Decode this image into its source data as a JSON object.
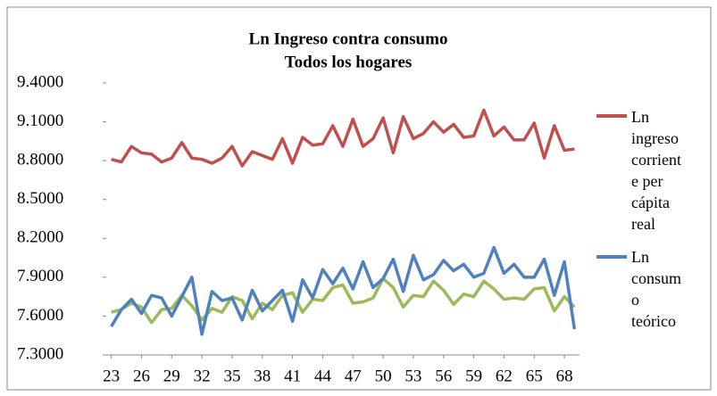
{
  "chart_data": {
    "type": "line",
    "title": "Ln Ingreso contra consumo",
    "subtitle": "Todos los hogares",
    "x": [
      23,
      24,
      25,
      26,
      27,
      28,
      29,
      30,
      31,
      32,
      33,
      34,
      35,
      36,
      37,
      38,
      39,
      40,
      41,
      42,
      43,
      44,
      45,
      46,
      47,
      48,
      49,
      50,
      51,
      52,
      53,
      54,
      55,
      56,
      57,
      58,
      59,
      60,
      61,
      62,
      63,
      64,
      65,
      66,
      67,
      68,
      69
    ],
    "xlim": [
      22.5,
      69.5
    ],
    "xticks": [
      23,
      26,
      29,
      32,
      35,
      38,
      41,
      44,
      47,
      50,
      53,
      56,
      59,
      62,
      65,
      68
    ],
    "ylim": [
      7.3,
      9.4
    ],
    "yticks": [
      {
        "value": 7.3,
        "label": "7.3000"
      },
      {
        "value": 7.6,
        "label": "7.6000"
      },
      {
        "value": 7.9,
        "label": "7.9000"
      },
      {
        "value": 8.2,
        "label": "8.2000"
      },
      {
        "value": 8.5,
        "label": "8.5000"
      },
      {
        "value": 8.8,
        "label": "8.8000"
      },
      {
        "value": 9.1,
        "label": "9.1000"
      },
      {
        "value": 9.4,
        "label": "9.4000"
      }
    ],
    "series": [
      {
        "name": "Ln ingreso corriente per cápita real",
        "color": "#c0504d",
        "values": [
          8.81,
          8.79,
          8.91,
          8.86,
          8.85,
          8.79,
          8.82,
          8.94,
          8.82,
          8.81,
          8.78,
          8.82,
          8.91,
          8.76,
          8.87,
          8.84,
          8.81,
          8.97,
          8.78,
          8.98,
          8.92,
          8.93,
          9.07,
          8.91,
          9.12,
          8.91,
          8.97,
          9.13,
          8.86,
          9.14,
          8.97,
          9.01,
          9.1,
          9.02,
          9.08,
          8.98,
          8.99,
          9.19,
          8.99,
          9.06,
          8.96,
          8.96,
          9.09,
          8.82,
          9.07,
          8.88,
          8.89
        ]
      },
      {
        "name": "Ln consumo teórico",
        "color": "#4f81bd",
        "values": [
          7.52,
          7.65,
          7.73,
          7.62,
          7.76,
          7.74,
          7.6,
          7.75,
          7.9,
          7.46,
          7.79,
          7.72,
          7.74,
          7.57,
          7.8,
          7.64,
          7.72,
          7.8,
          7.56,
          7.88,
          7.74,
          7.96,
          7.85,
          7.97,
          7.81,
          8.02,
          7.82,
          7.89,
          8.04,
          7.79,
          8.07,
          7.88,
          7.92,
          8.03,
          7.95,
          8.0,
          7.9,
          7.93,
          8.13,
          7.93,
          8.0,
          7.9,
          7.9,
          8.04,
          7.76,
          8.02,
          7.5
        ]
      },
      {
        "color": "#9bbb59",
        "values": [
          7.63,
          7.65,
          7.7,
          7.67,
          7.55,
          7.65,
          7.66,
          7.76,
          7.68,
          7.57,
          7.66,
          7.63,
          7.75,
          7.72,
          7.58,
          7.7,
          7.65,
          7.76,
          7.78,
          7.63,
          7.73,
          7.72,
          7.82,
          7.84,
          7.7,
          7.71,
          7.74,
          7.89,
          7.82,
          7.67,
          7.76,
          7.75,
          7.87,
          7.8,
          7.69,
          7.77,
          7.75,
          7.87,
          7.81,
          7.73,
          7.74,
          7.73,
          7.81,
          7.82,
          7.64,
          7.75,
          7.67
        ]
      }
    ]
  }
}
